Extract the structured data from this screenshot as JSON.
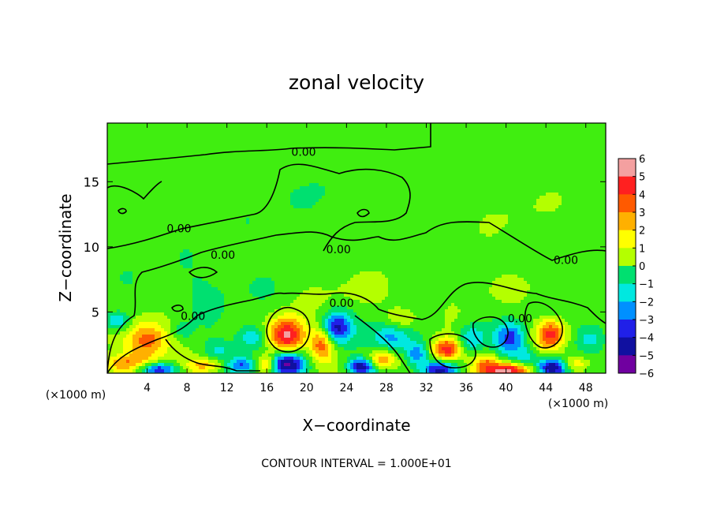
{
  "chart_data": {
    "type": "heatmap",
    "title": "zonal velocity",
    "xlabel": "X−coordinate",
    "ylabel": "Z−coordinate",
    "x_unit_left": "(×1000 m)",
    "x_unit_right": "(×1000 m)",
    "footer": "CONTOUR INTERVAL = 1.000E+01",
    "xlim": [
      0,
      50
    ],
    "ylim": [
      0.3,
      19.5
    ],
    "x_ticks": [
      4,
      8,
      12,
      16,
      20,
      24,
      28,
      32,
      36,
      40,
      44,
      48
    ],
    "x_tick_labels": [
      "4",
      "8",
      "12",
      "16",
      "20",
      "24",
      "28",
      "32",
      "36",
      "40",
      "44",
      "48"
    ],
    "y_ticks": [
      5,
      10,
      15
    ],
    "y_tick_labels": [
      "5",
      "10",
      "15"
    ],
    "colorbar": {
      "levels": [
        6,
        5,
        4,
        3,
        2,
        1,
        0,
        -1,
        -2,
        -3,
        -4,
        -5,
        -6
      ],
      "labels": [
        "6",
        "5",
        "4",
        "3",
        "2",
        "1",
        "0",
        "−1",
        "−2",
        "−3",
        "−4",
        "−5",
        "−6"
      ],
      "colors": [
        "#f4a0a0",
        "#ff2020",
        "#ff5a00",
        "#ffb000",
        "#ffff00",
        "#b4ff00",
        "#40ee10",
        "#00e070",
        "#00e8e0",
        "#0090ff",
        "#2020e8",
        "#1010a0",
        "#7000a0"
      ]
    },
    "contour_labels": [
      {
        "text": "0.00",
        "x": 19.7,
        "z": 17.3
      },
      {
        "text": "0.00",
        "x": 7.2,
        "z": 11.4
      },
      {
        "text": "0.00",
        "x": 11.6,
        "z": 9.4
      },
      {
        "text": "0.00",
        "x": 23.2,
        "z": 9.8
      },
      {
        "text": "0.00",
        "x": 46.0,
        "z": 9.0
      },
      {
        "text": "0.00",
        "x": 8.6,
        "z": 4.7
      },
      {
        "text": "0.00",
        "x": 23.5,
        "z": 5.7
      },
      {
        "text": "0.00",
        "x": 41.4,
        "z": 4.5
      }
    ],
    "features": [
      {
        "x": 4.0,
        "z": 2.8,
        "rx": 2.2,
        "rz": 1.5,
        "v": 4.6
      },
      {
        "x": 1.0,
        "z": 4.3,
        "rx": 1.2,
        "rz": 0.7,
        "v": -3.0
      },
      {
        "x": 2.0,
        "z": 1.0,
        "rx": 2.5,
        "rz": 0.7,
        "v": 3.0
      },
      {
        "x": 5.0,
        "z": 0.6,
        "rx": 2.0,
        "rz": 0.5,
        "v": -4.6
      },
      {
        "x": 10.0,
        "z": 0.9,
        "rx": 2.0,
        "rz": 0.6,
        "v": 2.6
      },
      {
        "x": 13.5,
        "z": 0.9,
        "rx": 1.5,
        "rz": 0.6,
        "v": -3.5
      },
      {
        "x": 14.5,
        "z": 3.0,
        "rx": 1.5,
        "rz": 1.0,
        "v": -2.8
      },
      {
        "x": 18.0,
        "z": 3.2,
        "rx": 1.8,
        "rz": 1.4,
        "v": 6.2
      },
      {
        "x": 18.0,
        "z": 1.0,
        "rx": 1.8,
        "rz": 0.9,
        "v": -5.8
      },
      {
        "x": 16.0,
        "z": 1.0,
        "rx": 1.0,
        "rz": 0.7,
        "v": 3.5
      },
      {
        "x": 21.5,
        "z": 2.5,
        "rx": 1.2,
        "rz": 1.3,
        "v": 4.0
      },
      {
        "x": 23.0,
        "z": 3.8,
        "rx": 1.5,
        "rz": 1.2,
        "v": -4.6
      },
      {
        "x": 25.5,
        "z": 0.8,
        "rx": 1.3,
        "rz": 0.6,
        "v": -5.2
      },
      {
        "x": 27.5,
        "z": 1.4,
        "rx": 1.3,
        "rz": 0.7,
        "v": 3.5
      },
      {
        "x": 28.5,
        "z": 3.0,
        "rx": 2.0,
        "rz": 1.2,
        "v": -3.3
      },
      {
        "x": 29.5,
        "z": 4.5,
        "rx": 1.5,
        "rz": 0.8,
        "v": 2.0
      },
      {
        "x": 31.0,
        "z": 1.8,
        "rx": 1.0,
        "rz": 0.8,
        "v": -2.8
      },
      {
        "x": 34.0,
        "z": 2.1,
        "rx": 1.4,
        "rz": 0.9,
        "v": 5.2
      },
      {
        "x": 33.5,
        "z": 0.6,
        "rx": 1.8,
        "rz": 0.6,
        "v": -4.4
      },
      {
        "x": 36.5,
        "z": 3.0,
        "rx": 1.3,
        "rz": 1.0,
        "v": -2.4
      },
      {
        "x": 38.0,
        "z": 1.2,
        "rx": 1.2,
        "rz": 0.7,
        "v": 2.8
      },
      {
        "x": 40.0,
        "z": 0.5,
        "rx": 2.5,
        "rz": 0.6,
        "v": 6.2
      },
      {
        "x": 40.5,
        "z": 3.0,
        "rx": 1.5,
        "rz": 1.2,
        "v": -3.8
      },
      {
        "x": 42.0,
        "z": 1.5,
        "rx": 1.2,
        "rz": 0.8,
        "v": -2.4
      },
      {
        "x": 44.5,
        "z": 3.3,
        "rx": 1.5,
        "rz": 1.2,
        "v": 4.9
      },
      {
        "x": 44.5,
        "z": 0.7,
        "rx": 1.5,
        "rz": 0.7,
        "v": -6.0
      },
      {
        "x": 47.0,
        "z": 1.0,
        "rx": 1.3,
        "rz": 0.7,
        "v": 2.8
      },
      {
        "x": 48.5,
        "z": 3.0,
        "rx": 1.5,
        "rz": 1.2,
        "v": -2.3
      },
      {
        "x": 11.0,
        "z": 2.0,
        "rx": 1.5,
        "rz": 0.8,
        "v": -1.6
      },
      {
        "x": 7.5,
        "z": 3.5,
        "rx": 1.2,
        "rz": 0.8,
        "v": -1.3
      },
      {
        "x": 25.0,
        "z": 6.5,
        "rx": 6.0,
        "rz": 1.5,
        "v": 0.6
      },
      {
        "x": 38.0,
        "z": 7.0,
        "rx": 5.0,
        "rz": 1.5,
        "v": 0.5
      },
      {
        "x": 10.0,
        "z": 7.0,
        "rx": 6.0,
        "rz": 2.0,
        "v": -0.6
      },
      {
        "x": 20.0,
        "z": 14.0,
        "rx": 10.0,
        "rz": 3.0,
        "v": -0.3
      },
      {
        "x": 40.0,
        "z": 13.0,
        "rx": 10.0,
        "rz": 3.0,
        "v": 0.3
      }
    ]
  }
}
